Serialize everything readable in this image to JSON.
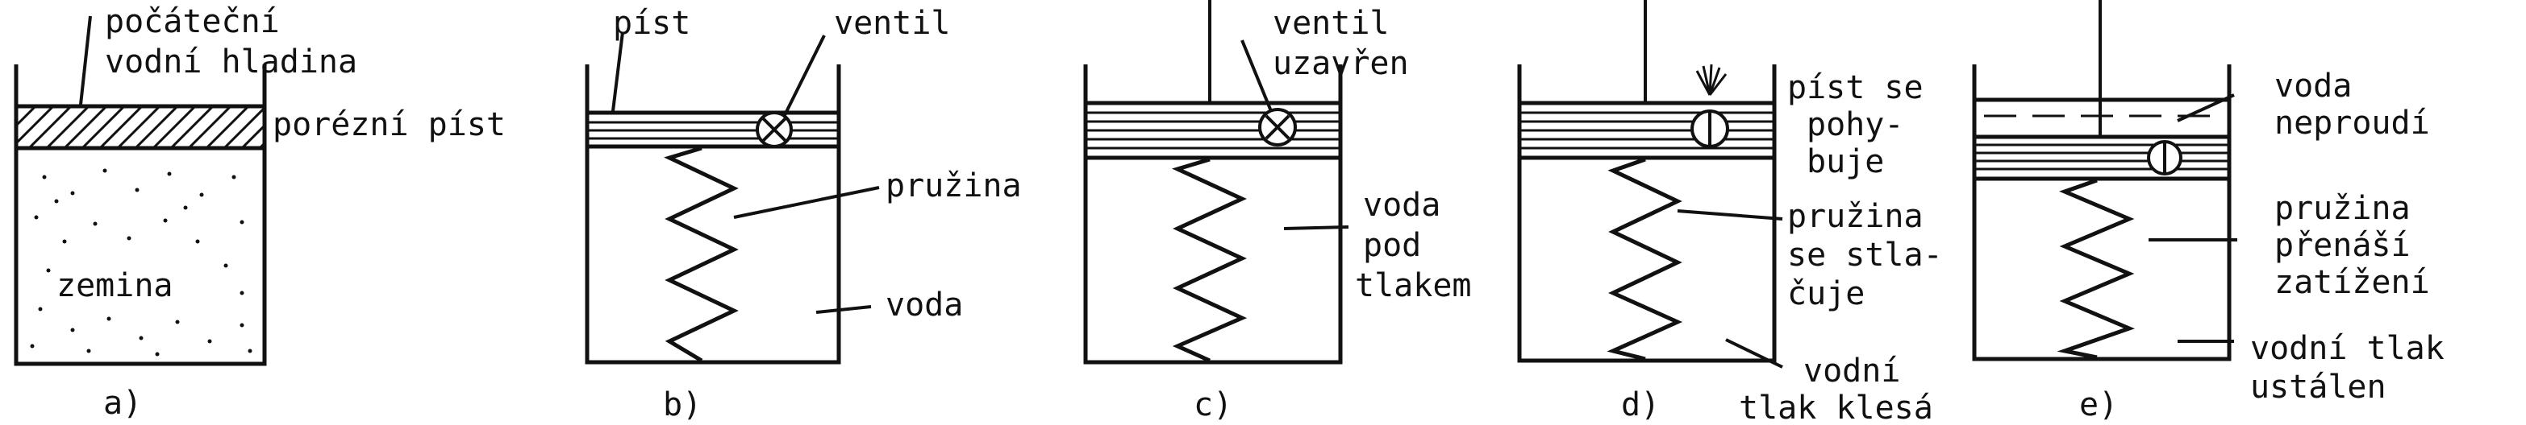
{
  "diagram": {
    "colors": {
      "ink": "#111111",
      "paper": "#ffffff"
    },
    "panels": [
      {
        "id": "a",
        "caption": "a)",
        "labels": {
          "water_level": [
            "počáteční",
            "vodní hladina"
          ],
          "piston": "porézní píst",
          "soil": "zemina"
        }
      },
      {
        "id": "b",
        "caption": "b)",
        "labels": {
          "piston": "píst",
          "valve": "ventil",
          "spring": "pružina",
          "water": "voda"
        }
      },
      {
        "id": "c",
        "caption": "c)",
        "labels": {
          "valve": [
            "ventil",
            "uzavřen"
          ],
          "water": [
            "voda",
            "pod",
            "tlakem"
          ]
        }
      },
      {
        "id": "d",
        "caption": "d)",
        "labels": {
          "piston": [
            "píst se",
            "pohy-",
            "buje"
          ],
          "spring": [
            "pružina",
            "se stla-",
            "čuje"
          ],
          "pressure": [
            "vodní",
            "tlak klesá"
          ]
        }
      },
      {
        "id": "e",
        "caption": "e)",
        "labels": {
          "water": [
            "voda",
            "neproudí"
          ],
          "spring": [
            "pružina",
            "přenáší",
            "zatížení"
          ],
          "pressure": [
            "vodní tlak",
            "ustálen"
          ]
        }
      }
    ]
  }
}
